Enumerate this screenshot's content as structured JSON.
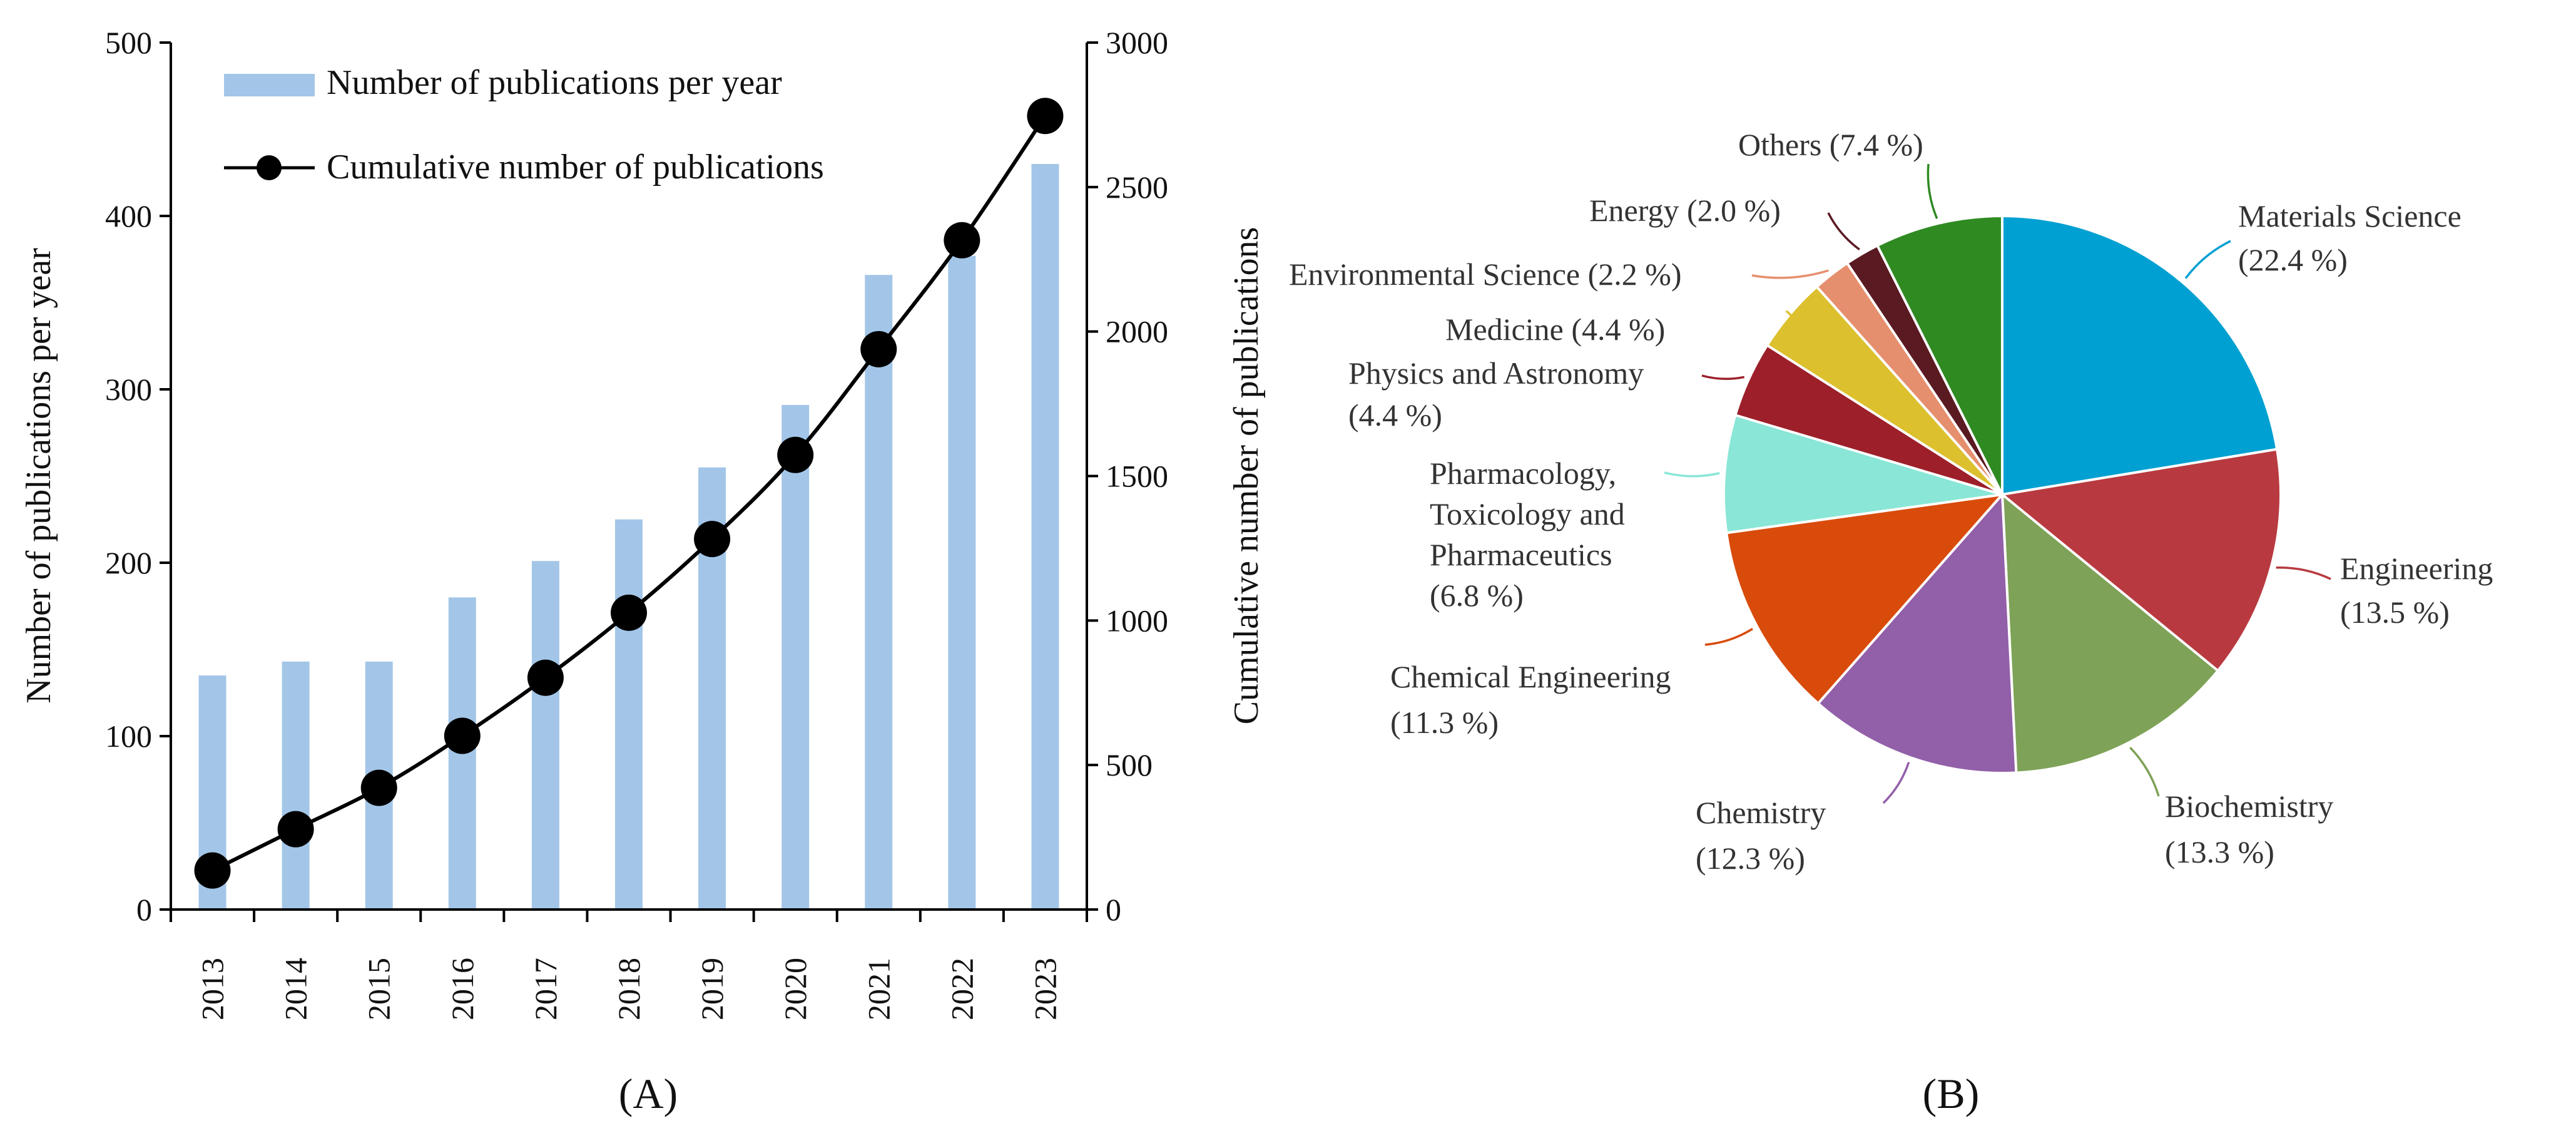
{
  "chart_data": [
    {
      "type": "bar+line",
      "panel_label": "(A)",
      "categories": [
        "2013",
        "2014",
        "2015",
        "2016",
        "2017",
        "2018",
        "2019",
        "2020",
        "2021",
        "2022",
        "2023"
      ],
      "series": [
        {
          "name": "Number of publications per year",
          "type": "bar",
          "axis": "left",
          "color": "#a3c6e8",
          "values": [
            135,
            143,
            143,
            180,
            201,
            225,
            255,
            291,
            366,
            377,
            430
          ]
        },
        {
          "name": "Cumulative number of publications",
          "type": "line",
          "axis": "right",
          "color": "#000000",
          "values": [
            135,
            278,
            421,
            601,
            802,
            1027,
            1282,
            1573,
            1939,
            2316,
            2746
          ]
        }
      ],
      "ylabel": "Number of publications per year",
      "y2label": "Cumulative number of publications",
      "ylim": [
        0,
        500
      ],
      "y2lim": [
        0,
        3000
      ],
      "yticks": [
        "0",
        "100",
        "200",
        "300",
        "400",
        "500"
      ],
      "y2ticks": [
        "0",
        "500",
        "1000",
        "1500",
        "2000",
        "2500",
        "3000"
      ],
      "legend": "top-left"
    },
    {
      "type": "pie",
      "panel_label": "(B)",
      "slices": [
        {
          "name": "Materials Science",
          "value": 22.4,
          "pct": "(22.4 %)",
          "color": "#00a0d2"
        },
        {
          "name": "Engineering",
          "value": 13.5,
          "pct": "(13.5 %)",
          "color": "#b83a40"
        },
        {
          "name": "Biochemistry",
          "value": 13.3,
          "pct": "(13.3 %)",
          "color": "#7ea257"
        },
        {
          "name": "Chemistry",
          "value": 12.3,
          "pct": "(12.3 %)",
          "color": "#925fa9"
        },
        {
          "name": "Chemical Engineering",
          "value": 11.3,
          "pct": "(11.3 %)",
          "color": "#d94b0b"
        },
        {
          "name": "Pharmacology, Toxicology and Pharmaceutics",
          "line1": "Pharmacology,",
          "line2": "Toxicology and",
          "line3": "Pharmaceutics",
          "value": 6.8,
          "pct": "(6.8 %)",
          "color": "#8ae6d6"
        },
        {
          "name": "Physics and Astronomy",
          "value": 4.4,
          "pct": "(4.4 %)",
          "color": "#9c1f29"
        },
        {
          "name": "Medicine",
          "value": 4.4,
          "label": "Medicine (4.4 %)",
          "color": "#dcc02e"
        },
        {
          "name": "Environmental Science",
          "value": 2.2,
          "label": "Environmental Science (2.2 %)",
          "color": "#e68f6e"
        },
        {
          "name": "Energy",
          "value": 2.0,
          "label": "Energy (2.0 %)",
          "color": "#5a1a22"
        },
        {
          "name": "Others",
          "value": 7.4,
          "label": "Others (7.4 %)",
          "color": "#2f8a22"
        }
      ]
    }
  ]
}
